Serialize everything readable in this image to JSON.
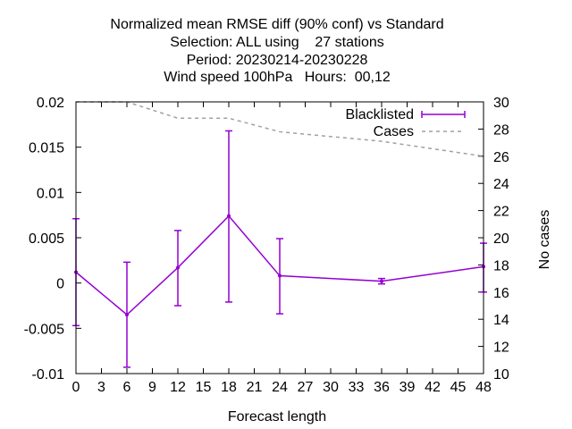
{
  "chart_data": {
    "type": "line",
    "title_lines": [
      "Normalized mean RMSE diff (90% conf) vs Standard",
      "Selection: ALL using    27 stations",
      "Period: 20230214-20230228",
      "Wind speed 100hPa   Hours:  00,12"
    ],
    "xlabel": "Forecast length",
    "ylabel": "",
    "y2label": "No cases",
    "xlim": [
      0,
      48
    ],
    "ylim": [
      -0.01,
      0.02
    ],
    "y2lim": [
      10,
      30
    ],
    "x_ticks": [
      "0",
      "3",
      "6",
      "9",
      "12",
      "15",
      "18",
      "21",
      "24",
      "27",
      "30",
      "33",
      "36",
      "39",
      "42",
      "45",
      "48"
    ],
    "y_ticks": [
      "-0.01",
      "-0.005",
      "0",
      "0.005",
      "0.01",
      "0.015",
      "0.02"
    ],
    "y2_ticks": [
      "10",
      "12",
      "14",
      "16",
      "18",
      "20",
      "22",
      "24",
      "26",
      "28",
      "30"
    ],
    "legend_position": "top-right",
    "series": [
      {
        "name": "Blacklisted",
        "axis": "left",
        "color": "#9400d3",
        "x": [
          0,
          6,
          12,
          18,
          24,
          36,
          48
        ],
        "y": [
          0.0012,
          -0.0035,
          0.0017,
          0.0074,
          0.0008,
          0.0002,
          0.0018
        ],
        "err_low": [
          -0.0047,
          -0.0093,
          -0.0025,
          -0.0021,
          -0.0034,
          -0.0001,
          -0.001
        ],
        "err_high": [
          0.0071,
          0.0023,
          0.0058,
          0.0168,
          0.0049,
          0.0005,
          0.0044
        ]
      },
      {
        "name": "Cases",
        "axis": "right",
        "color": "#a0a0a0",
        "x": [
          0,
          6,
          12,
          18,
          24,
          36,
          48
        ],
        "y": [
          30,
          30,
          28.8,
          28.8,
          27.8,
          27.1,
          26
        ]
      }
    ]
  }
}
